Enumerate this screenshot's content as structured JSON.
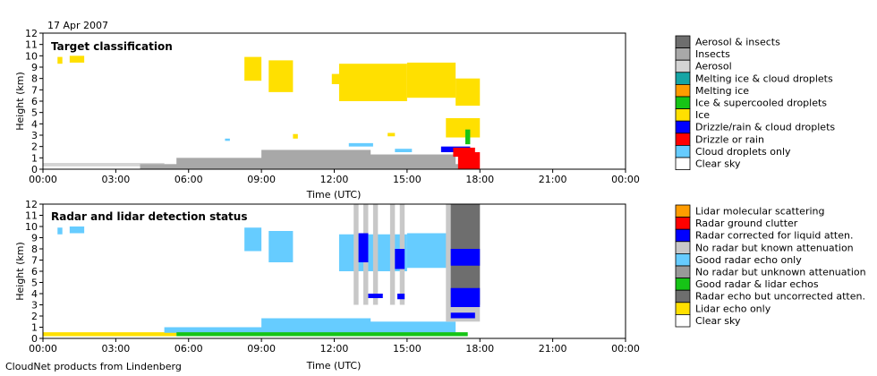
{
  "date_label": "17 Apr 2007",
  "footer_label": "CloudNet products from Lindenberg",
  "colors": {
    "aerosol_insects": "#6e6e6e",
    "insects": "#a8a8a8",
    "aerosol": "#d4d4d4",
    "melting_ice_cloud": "#16a5a5",
    "melting_ice": "#ff9c00",
    "ice_supercooled": "#16c416",
    "ice": "#ffe000",
    "drizzle_cloud": "#0000ff",
    "drizzle_rain": "#ff0000",
    "cloud_droplets": "#66ccff",
    "clear_sky": "#ffffff",
    "lidar_molecular": "#ff9c00",
    "radar_ground_clutter": "#ff0000",
    "radar_corrected": "#0000ff",
    "no_radar_known": "#c8c8c8",
    "good_radar_only": "#66ccff",
    "no_radar_unknown": "#999999",
    "good_radar_lidar": "#16c416",
    "radar_uncorrected": "#6e6e6e",
    "lidar_only": "#ffe000"
  },
  "chart_data": [
    {
      "type": "heatmap",
      "title": "Target classification",
      "xlabel": "Time (UTC)",
      "ylabel": "Height (km)",
      "xlim": [
        0,
        24
      ],
      "ylim": [
        0,
        12
      ],
      "x_ticks": [
        "00:00",
        "03:00",
        "06:00",
        "09:00",
        "12:00",
        "15:00",
        "18:00",
        "21:00",
        "00:00"
      ],
      "y_ticks": [
        "0",
        "1",
        "2",
        "3",
        "4",
        "5",
        "6",
        "7",
        "8",
        "9",
        "10",
        "11",
        "12"
      ],
      "legend": [
        "Aerosol & insects",
        "Insects",
        "Aerosol",
        "Melting ice & cloud droplets",
        "Melting ice",
        "Ice & supercooled droplets",
        "Ice",
        "Drizzle/rain & cloud droplets",
        "Drizzle or rain",
        "Cloud droplets only",
        "Clear sky"
      ],
      "legend_colors": [
        "aerosol_insects",
        "insects",
        "aerosol",
        "melting_ice_cloud",
        "melting_ice",
        "ice_supercooled",
        "ice",
        "drizzle_cloud",
        "drizzle_rain",
        "cloud_droplets",
        "clear_sky"
      ],
      "regions": [
        {
          "color": "aerosol",
          "t0": 0,
          "t1": 5,
          "h0": 0.25,
          "h1": 0.55
        },
        {
          "color": "insects",
          "t0": 4,
          "t1": 17.5,
          "h0": 0.0,
          "h1": 0.45
        },
        {
          "color": "insects",
          "t0": 5.5,
          "t1": 10,
          "h0": 0.2,
          "h1": 1.0
        },
        {
          "color": "insects",
          "t0": 9,
          "t1": 13.5,
          "h0": 0.3,
          "h1": 1.7
        },
        {
          "color": "insects",
          "t0": 13,
          "t1": 17,
          "h0": 0.2,
          "h1": 1.3
        },
        {
          "color": "ice",
          "t0": 0.6,
          "t1": 0.8,
          "h0": 9.3,
          "h1": 9.9
        },
        {
          "color": "ice",
          "t0": 1.1,
          "t1": 1.7,
          "h0": 9.4,
          "h1": 10.0
        },
        {
          "color": "ice",
          "t0": 8.3,
          "t1": 9.0,
          "h0": 7.8,
          "h1": 9.9
        },
        {
          "color": "ice",
          "t0": 9.3,
          "t1": 10.3,
          "h0": 6.8,
          "h1": 9.6
        },
        {
          "color": "ice",
          "t0": 11.9,
          "t1": 12.5,
          "h0": 7.5,
          "h1": 8.4
        },
        {
          "color": "ice",
          "t0": 12.2,
          "t1": 15.0,
          "h0": 6.0,
          "h1": 9.3
        },
        {
          "color": "ice",
          "t0": 15.0,
          "t1": 17.0,
          "h0": 6.3,
          "h1": 9.4
        },
        {
          "color": "ice",
          "t0": 17.0,
          "t1": 18.0,
          "h0": 5.6,
          "h1": 8.0
        },
        {
          "color": "ice",
          "t0": 16.6,
          "t1": 18.0,
          "h0": 2.8,
          "h1": 4.5
        },
        {
          "color": "ice",
          "t0": 10.3,
          "t1": 10.5,
          "h0": 2.7,
          "h1": 3.1
        },
        {
          "color": "ice",
          "t0": 14.2,
          "t1": 14.5,
          "h0": 2.9,
          "h1": 3.2
        },
        {
          "color": "cloud_droplets",
          "t0": 7.5,
          "t1": 7.7,
          "h0": 2.5,
          "h1": 2.7
        },
        {
          "color": "cloud_droplets",
          "t0": 12.6,
          "t1": 13.6,
          "h0": 2.0,
          "h1": 2.3
        },
        {
          "color": "cloud_droplets",
          "t0": 14.5,
          "t1": 15.2,
          "h0": 1.5,
          "h1": 1.8
        },
        {
          "color": "ice_supercooled",
          "t0": 17.4,
          "t1": 17.6,
          "h0": 2.2,
          "h1": 3.5
        },
        {
          "color": "drizzle_cloud",
          "t0": 16.4,
          "t1": 17.6,
          "h0": 1.5,
          "h1": 2.0
        },
        {
          "color": "drizzle_rain",
          "t0": 16.9,
          "t1": 17.8,
          "h0": 1.1,
          "h1": 1.9
        },
        {
          "color": "drizzle_rain",
          "t0": 17.1,
          "t1": 18.0,
          "h0": 0.0,
          "h1": 1.5
        }
      ]
    },
    {
      "type": "heatmap",
      "title": "Radar and lidar detection status",
      "xlabel": "Time (UTC)",
      "ylabel": "Height (km)",
      "xlim": [
        0,
        24
      ],
      "ylim": [
        0,
        12
      ],
      "x_ticks": [
        "00:00",
        "03:00",
        "06:00",
        "09:00",
        "12:00",
        "15:00",
        "18:00",
        "21:00",
        "00:00"
      ],
      "y_ticks": [
        "0",
        "1",
        "2",
        "3",
        "4",
        "5",
        "6",
        "7",
        "8",
        "9",
        "10",
        "11",
        "12"
      ],
      "legend": [
        "Lidar molecular scattering",
        "Radar ground clutter",
        "Radar corrected for liquid atten.",
        "No radar but known attenuation",
        "Good radar echo only",
        "No radar but unknown attenuation",
        "Good radar & lidar echos",
        "Radar echo but uncorrected atten.",
        "Lidar echo only",
        "Clear sky"
      ],
      "legend_colors": [
        "lidar_molecular",
        "radar_ground_clutter",
        "radar_corrected",
        "no_radar_known",
        "good_radar_only",
        "no_radar_unknown",
        "good_radar_lidar",
        "radar_uncorrected",
        "lidar_only",
        "clear_sky"
      ],
      "regions": [
        {
          "color": "lidar_only",
          "t0": 0,
          "t1": 5.5,
          "h0": 0.2,
          "h1": 0.55
        },
        {
          "color": "good_radar_only",
          "t0": 0.6,
          "t1": 0.8,
          "h0": 9.3,
          "h1": 9.9
        },
        {
          "color": "good_radar_only",
          "t0": 1.1,
          "t1": 1.7,
          "h0": 9.4,
          "h1": 10.0
        },
        {
          "color": "good_radar_only",
          "t0": 8.3,
          "t1": 9.0,
          "h0": 7.8,
          "h1": 9.9
        },
        {
          "color": "good_radar_only",
          "t0": 9.3,
          "t1": 10.3,
          "h0": 6.8,
          "h1": 9.6
        },
        {
          "color": "good_radar_only",
          "t0": 12.2,
          "t1": 15.0,
          "h0": 6.0,
          "h1": 9.3
        },
        {
          "color": "good_radar_only",
          "t0": 15.0,
          "t1": 17.0,
          "h0": 6.3,
          "h1": 9.4
        },
        {
          "color": "good_radar_only",
          "t0": 5,
          "t1": 10,
          "h0": 0.5,
          "h1": 1.0
        },
        {
          "color": "good_radar_only",
          "t0": 9,
          "t1": 13.5,
          "h0": 0.5,
          "h1": 1.8
        },
        {
          "color": "good_radar_only",
          "t0": 13,
          "t1": 17,
          "h0": 0.5,
          "h1": 1.5
        },
        {
          "color": "good_radar_lidar",
          "t0": 5.5,
          "t1": 17.5,
          "h0": 0.2,
          "h1": 0.55
        },
        {
          "color": "no_radar_known",
          "t0": 12.8,
          "t1": 13.0,
          "h0": 3.0,
          "h1": 12.0
        },
        {
          "color": "no_radar_known",
          "t0": 13.2,
          "t1": 13.4,
          "h0": 3.0,
          "h1": 12.0
        },
        {
          "color": "no_radar_known",
          "t0": 13.6,
          "t1": 13.8,
          "h0": 3.0,
          "h1": 12.0
        },
        {
          "color": "no_radar_known",
          "t0": 14.3,
          "t1": 14.5,
          "h0": 3.0,
          "h1": 12.0
        },
        {
          "color": "no_radar_known",
          "t0": 14.7,
          "t1": 14.9,
          "h0": 3.0,
          "h1": 12.0
        },
        {
          "color": "no_radar_known",
          "t0": 16.6,
          "t1": 18.0,
          "h0": 1.5,
          "h1": 12.0
        },
        {
          "color": "radar_uncorrected",
          "t0": 16.8,
          "t1": 18.0,
          "h0": 3.0,
          "h1": 12.0
        },
        {
          "color": "radar_corrected",
          "t0": 13.0,
          "t1": 13.4,
          "h0": 6.8,
          "h1": 9.4
        },
        {
          "color": "radar_corrected",
          "t0": 14.5,
          "t1": 14.9,
          "h0": 6.2,
          "h1": 8.0
        },
        {
          "color": "radar_corrected",
          "t0": 16.8,
          "t1": 18.0,
          "h0": 6.5,
          "h1": 8.0
        },
        {
          "color": "radar_corrected",
          "t0": 16.8,
          "t1": 18.0,
          "h0": 2.8,
          "h1": 4.5
        },
        {
          "color": "radar_corrected",
          "t0": 16.8,
          "t1": 17.8,
          "h0": 1.8,
          "h1": 2.3
        },
        {
          "color": "radar_corrected",
          "t0": 13.4,
          "t1": 14.0,
          "h0": 3.6,
          "h1": 4.0
        },
        {
          "color": "radar_corrected",
          "t0": 14.6,
          "t1": 14.9,
          "h0": 3.5,
          "h1": 4.0
        }
      ]
    }
  ]
}
